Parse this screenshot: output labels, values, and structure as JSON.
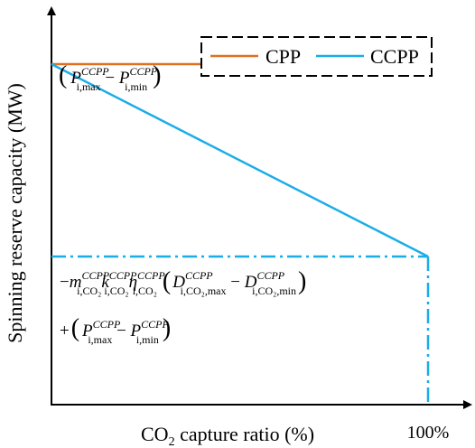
{
  "chart_data": {
    "type": "line",
    "xlabel_prefix": "CO",
    "xlabel_sub": "2",
    "xlabel_suffix": " capture ratio (%)",
    "ylabel": "Spinning reserve capacity (MW)",
    "x_tick_label": "100%",
    "xlim": [
      0,
      100
    ],
    "ylim": [
      0,
      1
    ],
    "legend_position": "top-right",
    "series": [
      {
        "name": "CPP",
        "color": "#E07020",
        "x": [
          0,
          100
        ],
        "y": [
          0.885,
          0.885
        ]
      },
      {
        "name": "CCPP",
        "color": "#1AADE8",
        "x": [
          0,
          100
        ],
        "y": [
          0.885,
          0.385
        ]
      }
    ],
    "reference_lines": {
      "style": "dash-dot",
      "color": "#1AADE8",
      "horizontal_y": 0.385,
      "vertical_x": 100
    },
    "annotations": {
      "top_formula": {
        "open": "(",
        "a_main": "P",
        "a_sup": "CCPP",
        "a_sub": "i,max",
        "minus": " − ",
        "b_main": "P",
        "b_sup": "CCPP",
        "b_sub": "i,min",
        "close": ")"
      },
      "bottom_formula_line1": {
        "lead": "−",
        "m_main": "m",
        "m_sup": "CCPP",
        "m_sub": "i,CO₂",
        "k_main": "k",
        "k_sup": "CCPP",
        "k_sub": "i,CO₂",
        "eta_main": "η",
        "eta_sup": "CCPP",
        "eta_sub": "i,CO₂",
        "open": "(",
        "d1_main": "D",
        "d1_sup": "CCPP",
        "d1_sub": "i,CO₂,max",
        "minus": " − ",
        "d2_main": "D",
        "d2_sup": "CCPP",
        "d2_sub": "i,CO₂,min",
        "close": ")"
      },
      "bottom_formula_line2": {
        "lead": "+",
        "open": "(",
        "a_main": "P",
        "a_sup": "CCPP",
        "a_sub": "i,max",
        "minus": " − ",
        "b_main": "P",
        "b_sup": "CCPP",
        "b_sub": "i,min",
        "close": ")"
      }
    }
  }
}
